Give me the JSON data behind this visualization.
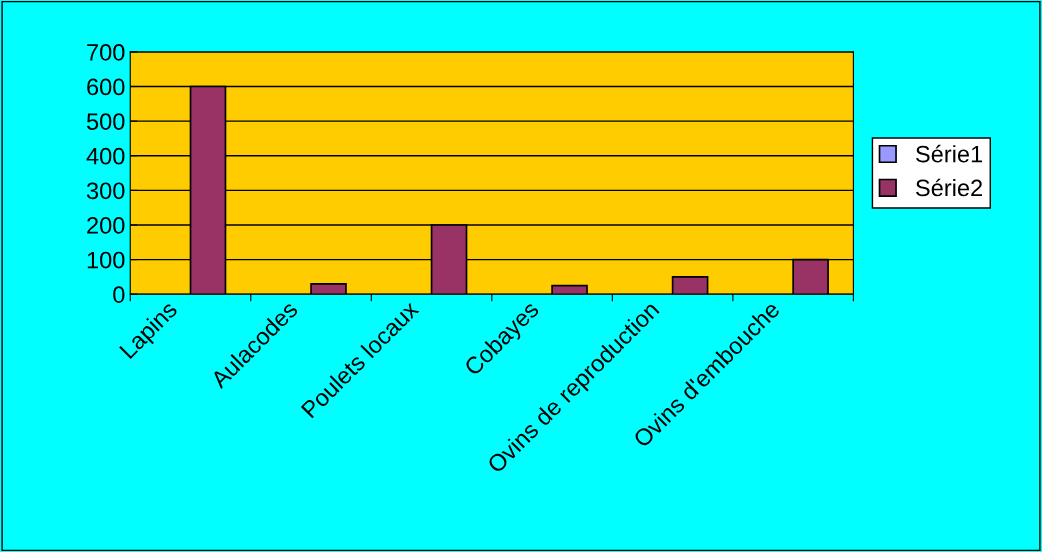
{
  "chart_data": {
    "type": "bar",
    "categories": [
      "Lapins",
      "Aulacodes",
      "Poulets locaux",
      "Cobayes",
      "Ovins de reproduction",
      "Ovins d'embouche"
    ],
    "series": [
      {
        "name": "Série1",
        "color": "#9999ff",
        "values": [
          null,
          null,
          null,
          null,
          null,
          null
        ]
      },
      {
        "name": "Série2",
        "color": "#993366",
        "values": [
          600,
          30,
          200,
          25,
          50,
          100
        ]
      }
    ],
    "ylim": [
      0,
      700
    ],
    "yticks": [
      0,
      100,
      200,
      300,
      400,
      500,
      600,
      700
    ],
    "grid": "y",
    "legend": "right"
  }
}
